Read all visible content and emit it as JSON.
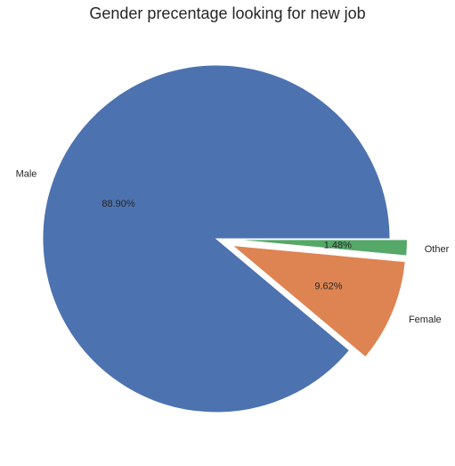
{
  "chart_data": {
    "type": "pie",
    "title": "Gender precentage looking for new job",
    "categories": [
      "Male",
      "Female",
      "Other"
    ],
    "values": [
      88.9,
      9.62,
      1.48
    ],
    "value_labels": [
      "88.90%",
      "9.62%",
      "1.48%"
    ],
    "explode": [
      0,
      0.1,
      0.1
    ],
    "colors": [
      "#4c72b0",
      "#dd8452",
      "#55a868"
    ],
    "start_angle": 0,
    "direction": "counterclockwise",
    "legend": "none"
  }
}
